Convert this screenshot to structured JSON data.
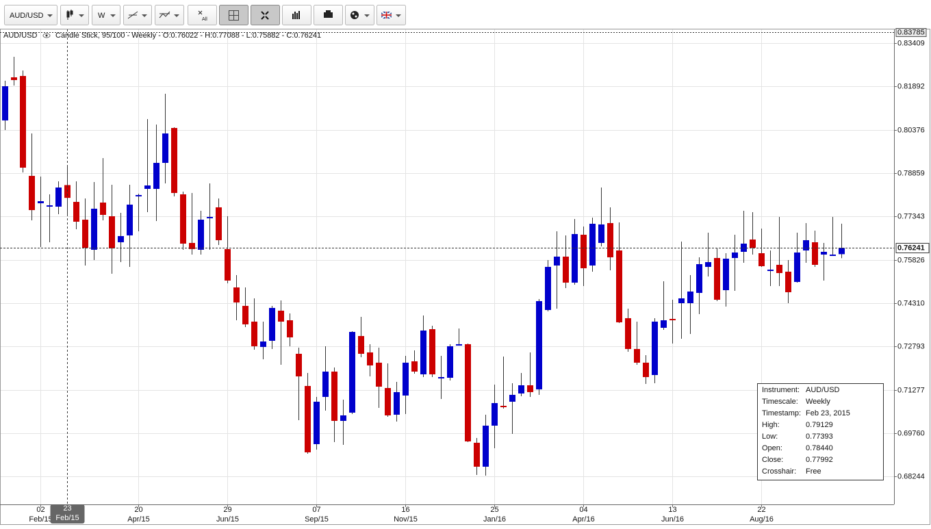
{
  "toolbar": {
    "symbol": "AUD/USD",
    "timescale": "W",
    "clear_label": "All"
  },
  "chart_data": {
    "type": "candlestick",
    "symbol": "AUD/USD",
    "legend_text": "Candle Stick, 95/100 - Weekly - O:0.76022 - H:0.77088 - L:0.75882 - C:0.76241",
    "series": [
      {
        "name": "AUD/USD",
        "up_color": "#0000cc",
        "down_color": "#cc0000",
        "open": [
          0.80703,
          0.82211,
          0.82259,
          0.78762,
          0.77804,
          0.77685,
          0.77685,
          0.7844,
          0.77852,
          0.77229,
          0.76176,
          0.77828,
          0.77349,
          0.76439,
          0.76679,
          0.78044,
          0.78307,
          0.78307,
          0.79217,
          0.80439,
          0.78116,
          0.76415,
          0.76176,
          0.77277,
          0.77661,
          0.762,
          0.74858,
          0.74212,
          0.73661,
          0.72775,
          0.7299,
          0.74044,
          0.73708,
          0.72535,
          0.71409,
          0.69373,
          0.71026,
          0.71912,
          0.70187,
          0.70475,
          0.73157,
          0.72583,
          0.72224,
          0.71337,
          0.70403,
          0.71074,
          0.72272,
          0.71816,
          0.73397,
          0.71672,
          0.71696,
          0.72847,
          0.72871,
          0.69421,
          0.68583,
          0.7002,
          0.70714,
          0.70858,
          0.71146,
          0.71433,
          0.7129,
          0.74068,
          0.75625,
          0.75936,
          0.75026,
          0.76702,
          0.75625,
          0.76415,
          0.7711,
          0.76152,
          0.73781,
          0.72703,
          0.72224,
          0.71792,
          0.73445,
          0.73756,
          0.74307,
          0.74307,
          0.74666,
          0.75577,
          0.75888,
          0.74762,
          0.75888,
          0.76104,
          0.76535,
          0.76056,
          0.75433,
          0.75649,
          0.75409,
          0.7505,
          0.76152,
          0.76439,
          0.76008,
          0.75984,
          0.76022
        ],
        "high": [
          0.82092,
          0.8293,
          0.82451,
          0.80247,
          0.78738,
          0.78116,
          0.78571,
          0.79129,
          0.78571,
          0.77972,
          0.78547,
          0.79385,
          0.78451,
          0.77469,
          0.78451,
          0.7814,
          0.8075,
          0.80559,
          0.81637,
          0.80463,
          0.78211,
          0.78164,
          0.77541,
          0.78499,
          0.77972,
          0.77349,
          0.75289,
          0.74858,
          0.74475,
          0.73661,
          0.74212,
          0.74403,
          0.73948,
          0.72751,
          0.71864,
          0.71026,
          0.72799,
          0.72056,
          0.7093,
          0.73325,
          0.73828,
          0.72871,
          0.72751,
          0.722,
          0.71552,
          0.72463,
          0.72655,
          0.73876,
          0.73517,
          0.72463,
          0.72871,
          0.73421,
          0.72895,
          0.69589,
          0.70403,
          0.71457,
          0.72439,
          0.71505,
          0.71864,
          0.72583,
          0.74451,
          0.75816,
          0.76822,
          0.76679,
          0.77253,
          0.7699,
          0.77301,
          0.78355,
          0.77661,
          0.77134,
          0.74116,
          0.73661,
          0.72487,
          0.73781,
          0.75074,
          0.74427,
          0.76463,
          0.75289,
          0.75912,
          0.76774,
          0.76247,
          0.76056,
          0.76702,
          0.77541,
          0.77493,
          0.76918,
          0.76152,
          0.77325,
          0.75816,
          0.76774,
          0.7711,
          0.76846,
          0.76415,
          0.77325,
          0.77088
        ],
        "low": [
          0.80367,
          0.81924,
          0.78882,
          0.77205,
          0.76271,
          0.76439,
          0.77421,
          0.77393,
          0.76894,
          0.75625,
          0.75816,
          0.77205,
          0.75337,
          0.75744,
          0.75577,
          0.76822,
          0.77493,
          0.77181,
          0.78499,
          0.78044,
          0.76176,
          0.76008,
          0.76008,
          0.76176,
          0.76343,
          0.75002,
          0.73708,
          0.73469,
          0.72679,
          0.72343,
          0.72703,
          0.72152,
          0.72799,
          0.70211,
          0.69038,
          0.69182,
          0.70547,
          0.69445,
          0.69349,
          0.70427,
          0.72415,
          0.71744,
          0.70642,
          0.70331,
          0.70163,
          0.70427,
          0.7184,
          0.7172,
          0.7172,
          0.70954,
          0.716,
          0.72823,
          0.69445,
          0.68295,
          0.68271,
          0.6923,
          0.70618,
          0.69733,
          0.7105,
          0.71026,
          0.71098,
          0.7402,
          0.74116,
          0.74834,
          0.74954,
          0.74906,
          0.75409,
          0.76295,
          0.75457,
          0.73613,
          0.72607,
          0.72152,
          0.71481,
          0.71505,
          0.73373,
          0.72895,
          0.73062,
          0.73229,
          0.73924,
          0.75241,
          0.74379,
          0.74188,
          0.74738,
          0.7572,
          0.76008,
          0.75577,
          0.74906,
          0.74906,
          0.74307,
          0.75026,
          0.7572,
          0.75577,
          0.75098,
          0.7596,
          0.75882
        ],
        "close": [
          0.819,
          0.82116,
          0.7905,
          0.77565,
          0.77876,
          0.77732,
          0.78355,
          0.77992,
          0.77158,
          0.76247,
          0.77613,
          0.77397,
          0.76223,
          0.76655,
          0.77756,
          0.78092,
          0.78427,
          0.79217,
          0.80247,
          0.78164,
          0.76391,
          0.762,
          0.77229,
          0.77325,
          0.76511,
          0.75098,
          0.74331,
          0.73565,
          0.72799,
          0.72966,
          0.7414,
          0.73661,
          0.7311,
          0.71744,
          0.69086,
          0.70858,
          0.71912,
          0.70187,
          0.70379,
          0.73301,
          0.72535,
          0.72128,
          0.71385,
          0.70379,
          0.71194,
          0.72224,
          0.71912,
          0.73349,
          0.71816,
          0.7172,
          0.72799,
          0.72871,
          0.69469,
          0.68583,
          0.7002,
          0.7081,
          0.70666,
          0.71098,
          0.71433,
          0.71194,
          0.74379,
          0.75577,
          0.75936,
          0.75026,
          0.76726,
          0.75529,
          0.77086,
          0.77062,
          0.75912,
          0.73637,
          0.72703,
          0.72224,
          0.7172,
          0.73661,
          0.73708,
          0.73708,
          0.74475,
          0.74714,
          0.75673,
          0.75744,
          0.74427,
          0.75864,
          0.7608,
          0.76391,
          0.76247,
          0.75601,
          0.75481,
          0.75361,
          0.7469,
          0.7608,
          0.76511,
          0.75649,
          0.76104,
          0.76008,
          0.76241
        ]
      }
    ],
    "xlim": [
      -0.5,
      99.9
    ],
    "ylim": [
      0.67265,
      0.83888
    ],
    "yticks": [
      0.83409,
      0.81892,
      0.80376,
      0.78859,
      0.77343,
      0.75826,
      {
        "value": 0.7431,
        "label": "0.74310"
      },
      0.72793,
      0.71277,
      {
        "value": 0.6976,
        "label": "0.69760"
      },
      0.68244
    ],
    "xticks": [
      {
        "value": 4,
        "label": "02",
        "sublabel": "Feb/15"
      },
      {
        "value": 15,
        "label": "20",
        "sublabel": "Apr/15"
      },
      {
        "value": 25,
        "label": "29",
        "sublabel": "Jun/15"
      },
      {
        "value": 35,
        "label": "07",
        "sublabel": "Sep/15"
      },
      {
        "value": 45,
        "label": "16",
        "sublabel": "Nov/15"
      },
      {
        "value": 55,
        "label": "25",
        "sublabel": "Jan/16"
      },
      {
        "value": 65,
        "label": "04",
        "sublabel": "Apr/16"
      },
      {
        "value": 75,
        "label": "13",
        "sublabel": "Jun/16"
      },
      {
        "value": 85,
        "label": "22",
        "sublabel": "Aug/16"
      }
    ],
    "grid": true,
    "price_markers": {
      "high": 0.83785,
      "last": 0.76241
    },
    "crosshair": {
      "value": 7,
      "label": "23",
      "sublabel": "Feb/15"
    },
    "info_box": [
      [
        "Instrument:",
        "AUD/USD"
      ],
      [
        "Timescale:",
        "Weekly"
      ],
      [
        "Timestamp:",
        "Feb 23, 2015"
      ],
      [
        "High:",
        "0.79129"
      ],
      [
        "Low:",
        "0.77393"
      ],
      [
        "Open:",
        "0.78440"
      ],
      [
        "Close:",
        "0.77992"
      ],
      [
        "Crosshair:",
        "Free"
      ]
    ]
  }
}
